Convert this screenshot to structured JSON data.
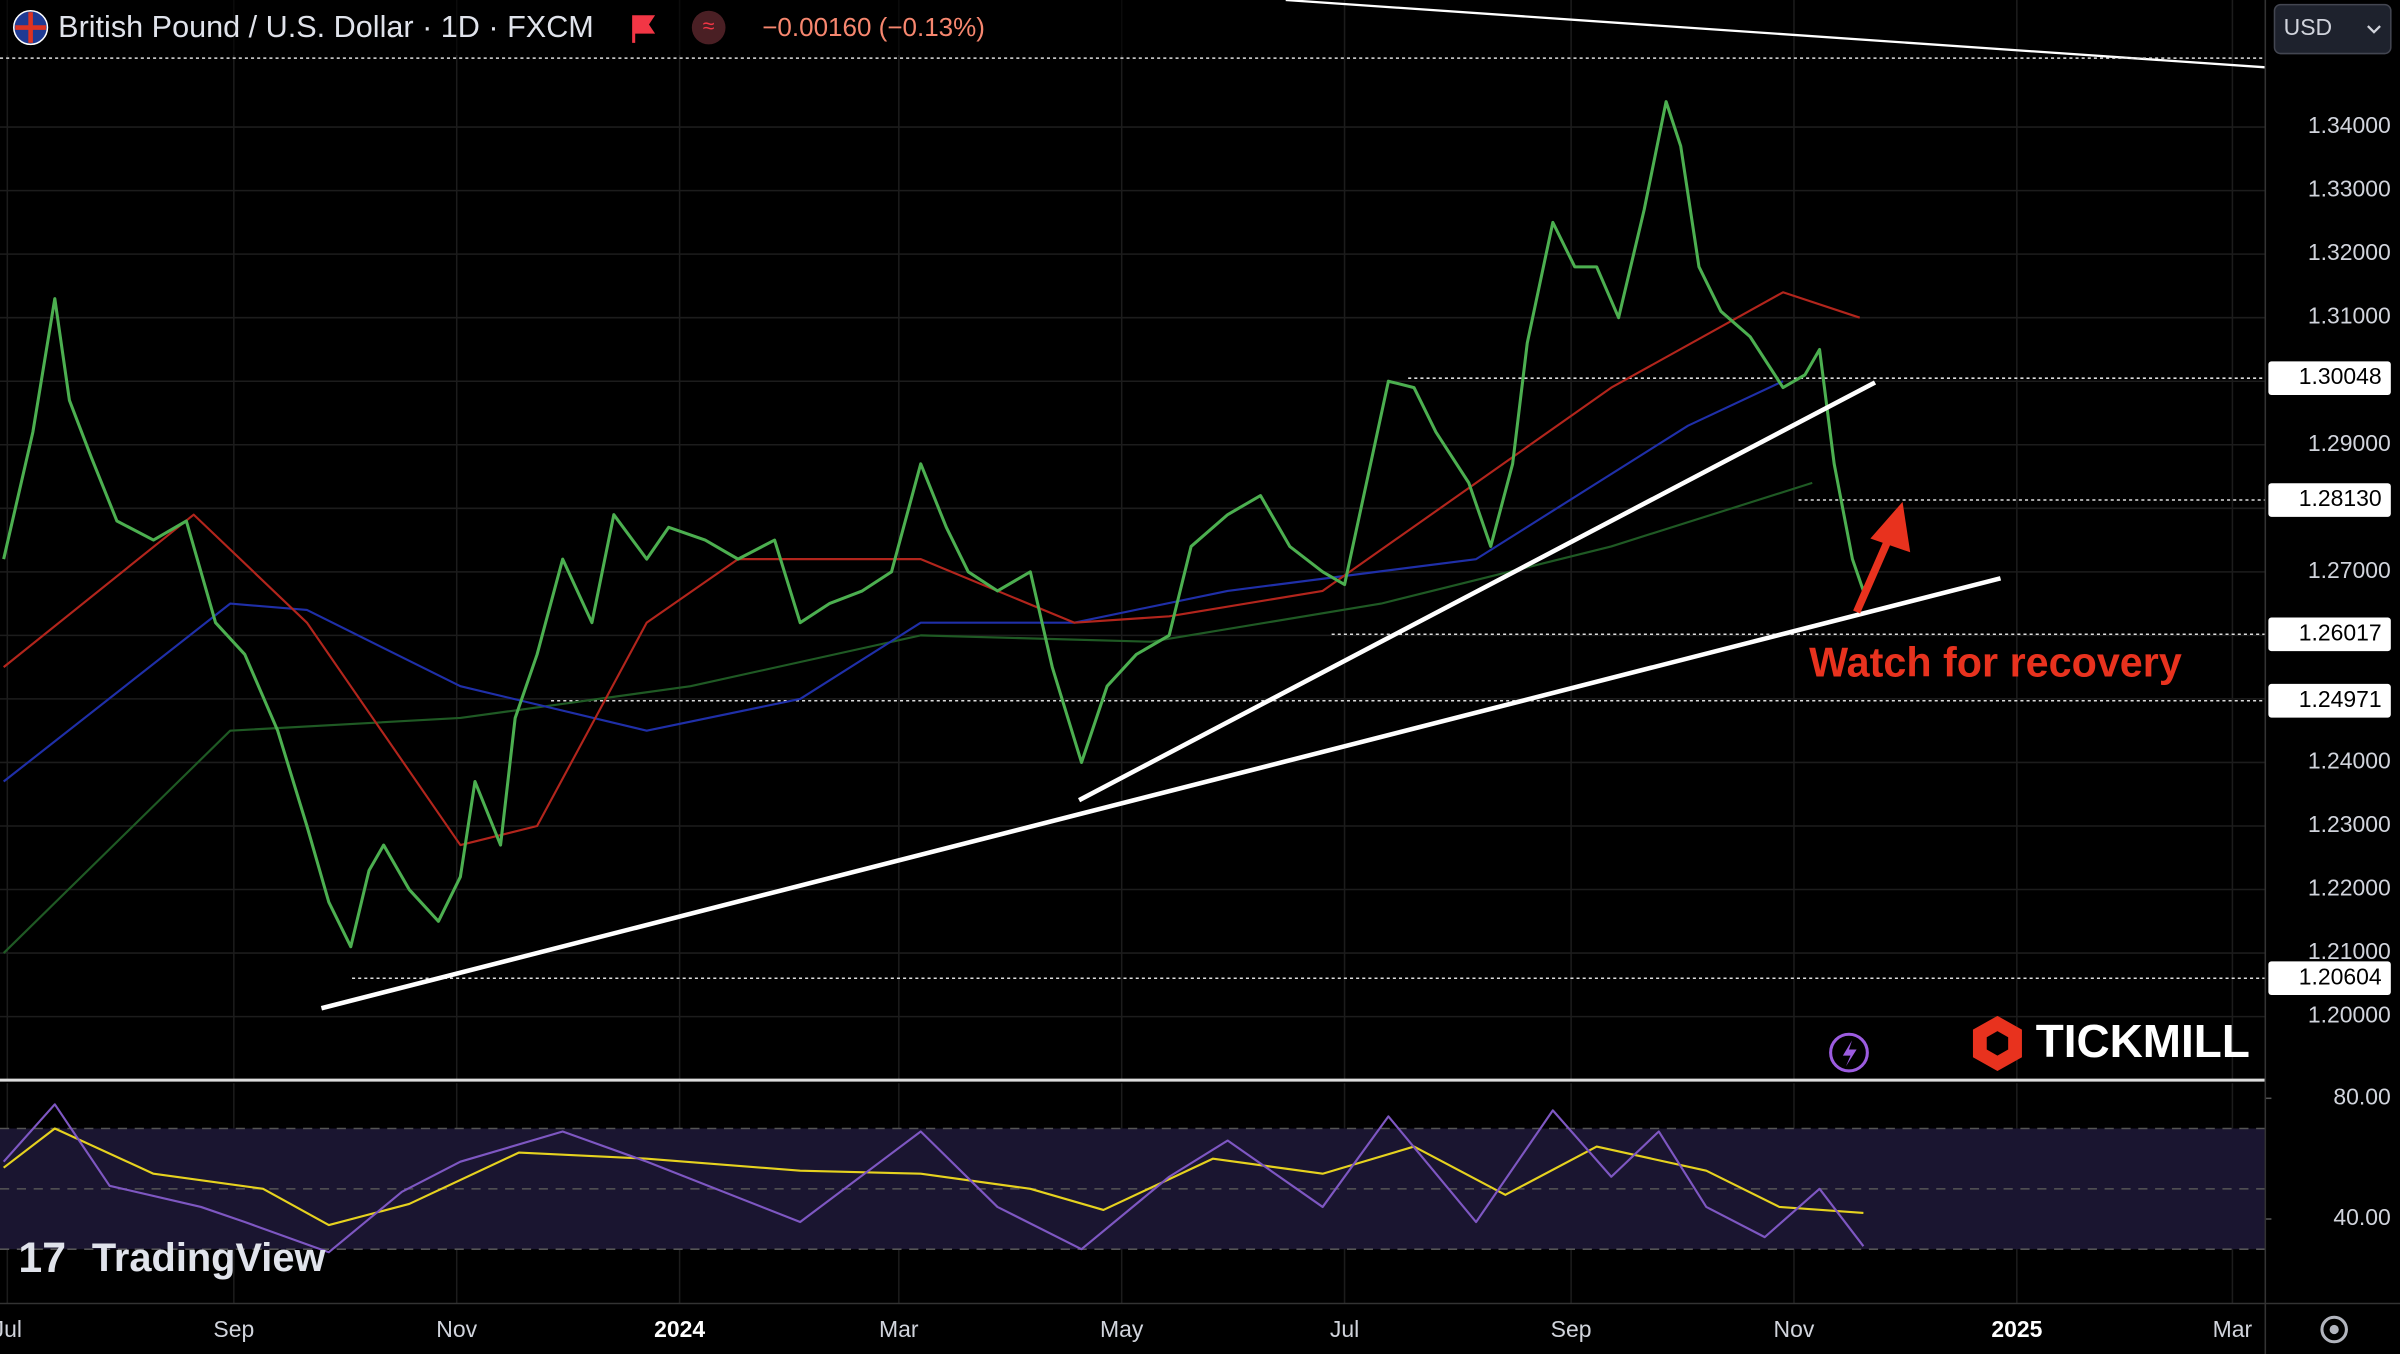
{
  "header": {
    "symbol": "British Pound / U.S. Dollar · 1D · FXCM",
    "change": "−0.00160 (−0.13%)",
    "currency": "USD"
  },
  "chart_data": [
    {
      "type": "line",
      "annotation": "Watch for recovery",
      "xlim": [
        -2,
        618
      ],
      "ylim": [
        1.19,
        1.36
      ],
      "xticks": [
        {
          "value": 0,
          "label": "Jul"
        },
        {
          "value": 62,
          "label": "Sep"
        },
        {
          "value": 123,
          "label": "Nov"
        },
        {
          "value": 184,
          "label": "2024"
        },
        {
          "value": 244,
          "label": "Mar"
        },
        {
          "value": 305,
          "label": "May"
        },
        {
          "value": 366,
          "label": "Jul"
        },
        {
          "value": 428,
          "label": "Sep"
        },
        {
          "value": 489,
          "label": "Nov"
        },
        {
          "value": 550,
          "label": "2025"
        },
        {
          "value": 609,
          "label": "Mar"
        }
      ],
      "yticks": [
        {
          "value": 1.2,
          "label": "1.20000"
        },
        {
          "value": 1.21,
          "label": "1.21000"
        },
        {
          "value": 1.22,
          "label": "1.22000"
        },
        {
          "value": 1.23,
          "label": "1.23000"
        },
        {
          "value": 1.24,
          "label": "1.24000"
        },
        {
          "value": 1.25,
          "label": "1.25000"
        },
        {
          "value": 1.26,
          "label": "1.26000"
        },
        {
          "value": 1.27,
          "label": "1.27000"
        },
        {
          "value": 1.28,
          "label": "1.28000"
        },
        {
          "value": 1.29,
          "label": "1.29000"
        },
        {
          "value": 1.3,
          "label": "1.30000"
        },
        {
          "value": 1.31,
          "label": "1.31000"
        },
        {
          "value": 1.32,
          "label": "1.32000"
        },
        {
          "value": 1.33,
          "label": "1.33000"
        },
        {
          "value": 1.34,
          "label": "1.34000"
        }
      ],
      "levels": [
        1.30048,
        {
          "value": 1.2813,
          "label": "1.28130"
        },
        1.26017,
        1.24971,
        1.20604
      ],
      "grid": true,
      "series": [
        {
          "color": "#4caf50",
          "x": [
            -1,
            7,
            13,
            17,
            23,
            30,
            40,
            49,
            57,
            65,
            74,
            82,
            88,
            94,
            99,
            103,
            110,
            118,
            124,
            128,
            135,
            139,
            145,
            152,
            160,
            166,
            175,
            181,
            191,
            200,
            210,
            217,
            225,
            234,
            242,
            250,
            257,
            263,
            271,
            280,
            286,
            294,
            301,
            309,
            318,
            324,
            334,
            343,
            351,
            360,
            366,
            372,
            378,
            385,
            391,
            400,
            406,
            412,
            416,
            423,
            429,
            435,
            441,
            448,
            454,
            458,
            463,
            469,
            477,
            486,
            492,
            496,
            500,
            505,
            508
          ],
          "values": [
            1.272,
            1.292,
            1.313,
            1.297,
            1.288,
            1.278,
            1.275,
            1.278,
            1.262,
            1.257,
            1.245,
            1.23,
            1.218,
            1.211,
            1.223,
            1.227,
            1.22,
            1.215,
            1.222,
            1.237,
            1.227,
            1.247,
            1.257,
            1.272,
            1.262,
            1.279,
            1.272,
            1.277,
            1.275,
            1.272,
            1.275,
            1.262,
            1.265,
            1.267,
            1.27,
            1.287,
            1.277,
            1.27,
            1.267,
            1.27,
            1.255,
            1.24,
            1.252,
            1.257,
            1.26,
            1.274,
            1.279,
            1.282,
            1.274,
            1.27,
            1.268,
            1.284,
            1.3,
            1.299,
            1.292,
            1.284,
            1.274,
            1.287,
            1.306,
            1.325,
            1.318,
            1.318,
            1.31,
            1.327,
            1.344,
            1.337,
            1.318,
            1.311,
            1.307,
            1.299,
            1.301,
            1.305,
            1.287,
            1.272,
            1.267
          ]
        },
        {
          "color": "#b2251c",
          "x": [
            -1,
            51,
            82,
            124,
            145,
            175,
            200,
            250,
            292,
            318,
            360,
            402,
            439,
            486,
            507
          ],
          "values": [
            1.255,
            1.279,
            1.262,
            1.227,
            1.23,
            1.262,
            1.272,
            1.272,
            1.262,
            1.263,
            1.267,
            1.284,
            1.299,
            1.314,
            1.31
          ]
        },
        {
          "color": "#1f2fa8",
          "x": [
            -1,
            61,
            82,
            124,
            175,
            217,
            250,
            292,
            334,
            402,
            460,
            486
          ],
          "values": [
            1.237,
            1.265,
            1.264,
            1.252,
            1.245,
            1.25,
            1.262,
            1.262,
            1.267,
            1.272,
            1.293,
            1.3
          ]
        },
        {
          "color": "#1f5a24",
          "x": [
            -1,
            61,
            124,
            187,
            250,
            313,
            376,
            439,
            494
          ],
          "values": [
            1.21,
            1.245,
            1.247,
            1.252,
            1.26,
            1.259,
            1.265,
            1.274,
            1.284
          ]
        }
      ]
    },
    {
      "type": "line",
      "xlim": [
        -2,
        618
      ],
      "ylim": [
        12,
        85
      ],
      "yticks": [
        {
          "value": 80,
          "label": "80.00"
        },
        {
          "value": 40,
          "label": "40.00"
        }
      ],
      "levels": [
        70,
        50,
        30
      ],
      "series": [
        {
          "color": "#7e57c2",
          "x": [
            -1,
            13,
            28,
            53,
            65,
            88,
            108,
            124,
            152,
            175,
            217,
            250,
            271,
            294,
            318,
            334,
            360,
            378,
            402,
            423,
            439,
            452,
            465,
            481,
            496,
            508
          ],
          "values": [
            59,
            78,
            51,
            44,
            39,
            29,
            49,
            59,
            69,
            59,
            39,
            69,
            44,
            30,
            54,
            66,
            44,
            74,
            39,
            76,
            54,
            69,
            44,
            34,
            50,
            31
          ]
        },
        {
          "color": "#e6d21f",
          "x": [
            -1,
            13,
            40,
            70,
            88,
            110,
            140,
            175,
            217,
            250,
            280,
            300,
            330,
            360,
            385,
            410,
            435,
            465,
            485,
            508
          ],
          "values": [
            57,
            70,
            55,
            50,
            38,
            45,
            62,
            60,
            56,
            55,
            50,
            43,
            60,
            55,
            64,
            48,
            64,
            56,
            44,
            42
          ]
        }
      ]
    }
  ]
}
